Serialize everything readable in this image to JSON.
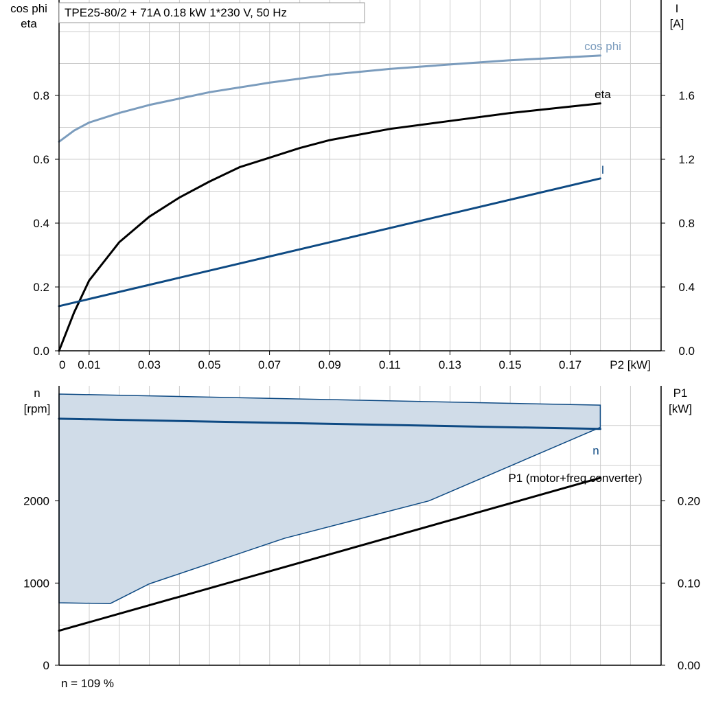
{
  "title": "TPE25-80/2 + 71A   0.18 kW   1*230 V, 50 Hz",
  "footer": "n = 109 %",
  "colors": {
    "cosphi": "#7b9cbd",
    "eta": "#000000",
    "current": "#0e4a83",
    "speed": "#0e4a83",
    "band_fill": "#d0dce8",
    "band_edge": "#0e4a83",
    "p1": "#000000",
    "grid": "#cccccc"
  },
  "chart_data": [
    {
      "type": "line",
      "xlabel": "P2 [kW]",
      "ylabel_left": [
        "cos phi",
        "eta"
      ],
      "ylabel_right": [
        "I",
        "[A]"
      ],
      "xlim": [
        0,
        0.2
      ],
      "ylim_left": [
        0,
        1.0
      ],
      "ylim_right": [
        0,
        2.0
      ],
      "xticks": [
        {
          "value": 0,
          "label": "0"
        },
        {
          "value": 0.01,
          "label": "0.01"
        },
        {
          "value": 0.03,
          "label": "0.03"
        },
        {
          "value": 0.05,
          "label": "0.05"
        },
        {
          "value": 0.07,
          "label": "0.07"
        },
        {
          "value": 0.09,
          "label": "0.09"
        },
        {
          "value": 0.11,
          "label": "0.11"
        },
        {
          "value": 0.13,
          "label": "0.13"
        },
        {
          "value": 0.15,
          "label": "0.15"
        },
        {
          "value": 0.17,
          "label": "0.17"
        }
      ],
      "yticks_left": [
        {
          "value": 0.0,
          "label": "0.0"
        },
        {
          "value": 0.2,
          "label": "0.2"
        },
        {
          "value": 0.4,
          "label": "0.4"
        },
        {
          "value": 0.6,
          "label": "0.6"
        },
        {
          "value": 0.8,
          "label": "0.8"
        }
      ],
      "yticks_right": [
        {
          "value": 0.0,
          "label": "0.0"
        },
        {
          "value": 0.4,
          "label": "0.4"
        },
        {
          "value": 0.8,
          "label": "0.8"
        },
        {
          "value": 1.2,
          "label": "1.2"
        },
        {
          "value": 1.6,
          "label": "1.6"
        }
      ],
      "series": [
        {
          "name": "cos phi",
          "axis": "left",
          "color_key": "cosphi",
          "x": [
            0,
            0.005,
            0.01,
            0.02,
            0.03,
            0.04,
            0.05,
            0.07,
            0.09,
            0.11,
            0.13,
            0.15,
            0.17,
            0.18
          ],
          "y": [
            0.655,
            0.69,
            0.715,
            0.745,
            0.77,
            0.79,
            0.81,
            0.84,
            0.865,
            0.883,
            0.897,
            0.91,
            0.92,
            0.925
          ]
        },
        {
          "name": "eta",
          "axis": "left",
          "color_key": "eta",
          "x": [
            0,
            0.005,
            0.01,
            0.02,
            0.03,
            0.04,
            0.05,
            0.06,
            0.07,
            0.08,
            0.09,
            0.11,
            0.13,
            0.15,
            0.17,
            0.18
          ],
          "y": [
            0.0,
            0.12,
            0.22,
            0.34,
            0.42,
            0.48,
            0.53,
            0.575,
            0.605,
            0.635,
            0.66,
            0.695,
            0.72,
            0.745,
            0.765,
            0.775
          ]
        },
        {
          "name": "I",
          "axis": "right",
          "color_key": "current",
          "x": [
            0,
            0.18
          ],
          "y": [
            0.28,
            1.08
          ]
        }
      ]
    },
    {
      "type": "line",
      "xlabel": "",
      "ylabel_left": [
        "n",
        "[rpm]"
      ],
      "ylabel_right": [
        "P1",
        "[kW]"
      ],
      "xlim": [
        0,
        0.2
      ],
      "ylim_left": [
        0,
        3400
      ],
      "ylim_right": [
        0,
        0.34
      ],
      "yticks_left": [
        {
          "value": 0,
          "label": "0"
        },
        {
          "value": 1000,
          "label": "1000"
        },
        {
          "value": 2000,
          "label": "2000"
        }
      ],
      "yticks_right": [
        {
          "value": 0,
          "label": "0.00"
        },
        {
          "value": 0.1,
          "label": "0.10"
        },
        {
          "value": 0.2,
          "label": "0.20"
        }
      ],
      "band": {
        "upper": {
          "x": [
            0,
            0.18
          ],
          "y": [
            3300,
            3165
          ]
        },
        "lower": {
          "x": [
            0,
            0.017,
            0.03,
            0.075,
            0.123,
            0.18
          ],
          "y": [
            760,
            750,
            990,
            1545,
            2000,
            2895
          ]
        }
      },
      "series": [
        {
          "name": "n",
          "axis": "left",
          "color_key": "speed",
          "x": [
            0,
            0.18
          ],
          "y": [
            3000,
            2875
          ]
        },
        {
          "name": "P1 (motor+freq.converter)",
          "axis": "right",
          "color_key": "p1",
          "x": [
            0,
            0.18
          ],
          "y": [
            0.042,
            0.228
          ]
        }
      ]
    }
  ]
}
